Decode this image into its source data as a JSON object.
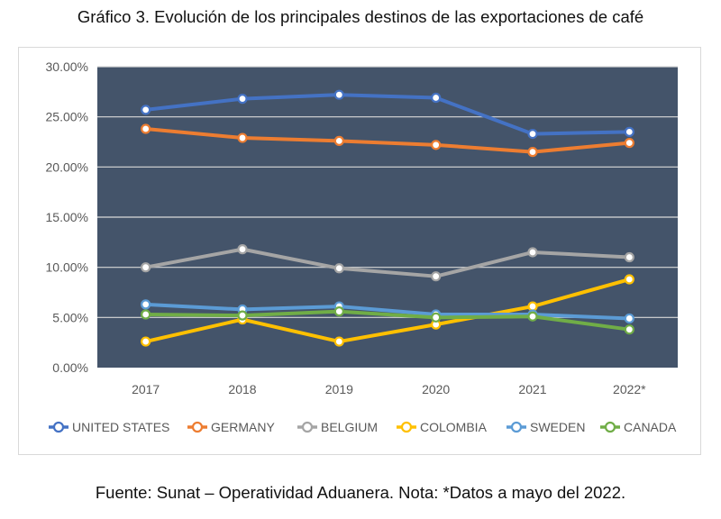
{
  "title": "Gráfico 3. Evolución de los principales destinos de las exportaciones de café",
  "source_note": "Fuente: Sunat – Operatividad Aduanera. Nota: *Datos a mayo del 2022.",
  "colors": {
    "plot_background": "#44546a",
    "gridline": "#d9d9d9",
    "tick_text": "#595959"
  },
  "chart_data": {
    "type": "line",
    "title": "",
    "xlabel": "",
    "ylabel": "",
    "x": [
      "2017",
      "2018",
      "2019",
      "2020",
      "2021",
      "2022*"
    ],
    "ylim": [
      0,
      30
    ],
    "yticks": [
      "0.00%",
      "5.00%",
      "10.00%",
      "15.00%",
      "20.00%",
      "25.00%",
      "30.00%"
    ],
    "y_unit": "percent",
    "grid": true,
    "legend_position": "bottom",
    "series": [
      {
        "name": "UNITED STATES",
        "color": "#4472c4",
        "values": [
          25.7,
          26.8,
          27.2,
          26.9,
          23.3,
          23.5
        ]
      },
      {
        "name": "GERMANY",
        "color": "#ed7d31",
        "values": [
          23.8,
          22.9,
          22.6,
          22.2,
          21.5,
          22.4
        ]
      },
      {
        "name": "BELGIUM",
        "color": "#a5a5a5",
        "values": [
          10.0,
          11.8,
          9.9,
          9.1,
          11.5,
          11.0
        ]
      },
      {
        "name": "COLOMBIA",
        "color": "#ffc000",
        "values": [
          2.6,
          4.8,
          2.6,
          4.3,
          6.1,
          8.8
        ]
      },
      {
        "name": "SWEDEN",
        "color": "#5b9bd5",
        "values": [
          6.3,
          5.8,
          6.1,
          5.3,
          5.3,
          4.9
        ]
      },
      {
        "name": "CANADA",
        "color": "#70ad47",
        "values": [
          5.3,
          5.2,
          5.6,
          5.0,
          5.1,
          3.8
        ]
      }
    ]
  }
}
